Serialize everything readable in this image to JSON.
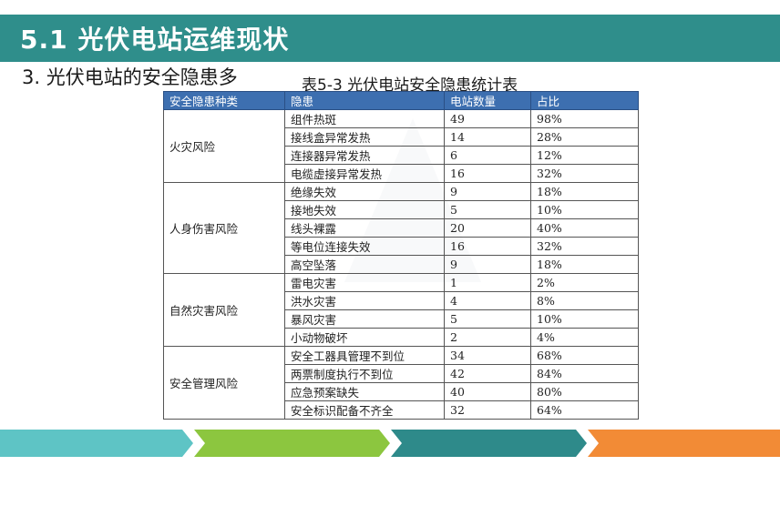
{
  "slide": {
    "title": "5.1 光伏电站运维现状",
    "subtitle": "3. 光伏电站的安全隐患多",
    "table_caption": "表5-3 光伏电站安全隐患统计表"
  },
  "table": {
    "headers": [
      "安全隐患种类",
      "隐患",
      "电站数量",
      "占比"
    ],
    "groups": [
      {
        "category": "火灾风险",
        "rows": [
          {
            "hazard": "组件热斑",
            "count": "49",
            "ratio": "98%"
          },
          {
            "hazard": "接线盒异常发热",
            "count": "14",
            "ratio": "28%"
          },
          {
            "hazard": "连接器异常发热",
            "count": "6",
            "ratio": "12%"
          },
          {
            "hazard": "电缆虚接异常发热",
            "count": "16",
            "ratio": "32%"
          }
        ]
      },
      {
        "category": "人身伤害风险",
        "rows": [
          {
            "hazard": "绝缘失效",
            "count": "9",
            "ratio": "18%"
          },
          {
            "hazard": "接地失效",
            "count": "5",
            "ratio": "10%"
          },
          {
            "hazard": "线头裸露",
            "count": "20",
            "ratio": "40%"
          },
          {
            "hazard": "等电位连接失效",
            "count": "16",
            "ratio": "32%"
          },
          {
            "hazard": "高空坠落",
            "count": "9",
            "ratio": "18%"
          }
        ]
      },
      {
        "category": "自然灾害风险",
        "rows": [
          {
            "hazard": "雷电灾害",
            "count": "1",
            "ratio": "2%"
          },
          {
            "hazard": "洪水灾害",
            "count": "4",
            "ratio": "8%"
          },
          {
            "hazard": "暴风灾害",
            "count": "5",
            "ratio": "10%"
          },
          {
            "hazard": "小动物破坏",
            "count": "2",
            "ratio": "4%"
          }
        ]
      },
      {
        "category": "安全管理风险",
        "rows": [
          {
            "hazard": "安全工器具管理不到位",
            "count": "34",
            "ratio": "68%"
          },
          {
            "hazard": "两票制度执行不到位",
            "count": "42",
            "ratio": "84%"
          },
          {
            "hazard": "应急预案缺失",
            "count": "40",
            "ratio": "80%"
          },
          {
            "hazard": "安全标识配备不齐全",
            "count": "32",
            "ratio": "64%"
          }
        ]
      }
    ]
  },
  "theme": {
    "title_bar_color": "#2f8e8b",
    "header_color": "#3d6fb0",
    "banner_colors": [
      "#5ec4c5",
      "#8cc63f",
      "#2e8a8a",
      "#f28b36"
    ]
  }
}
